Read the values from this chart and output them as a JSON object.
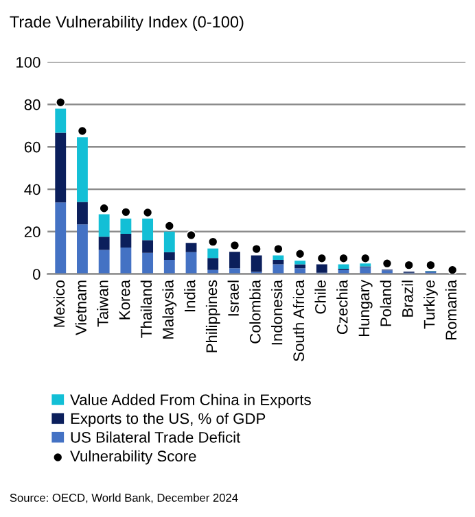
{
  "chart_data": {
    "type": "bar",
    "stacked": true,
    "title": "Trade Vulnerability Index (0-100)",
    "categories": [
      "Mexico",
      "Vietnam",
      "Taiwan",
      "Korea",
      "Thailand",
      "Malaysia",
      "India",
      "Philippines",
      "Israel",
      "Colombia",
      "Indonesia",
      "South Africa",
      "Chile",
      "Czechia",
      "Hungary",
      "Poland",
      "Brazil",
      "Turkiye",
      "Romania"
    ],
    "series": [
      {
        "name": "US Bilateral Trade Deficit",
        "color": "#4472c4",
        "values": [
          33.8,
          23.4,
          11.4,
          12.5,
          10,
          6.7,
          10.3,
          1.9,
          2.7,
          1,
          4.6,
          2.7,
          0.6,
          1.9,
          3.2,
          1.7,
          0.6,
          1,
          0
        ]
      },
      {
        "name": "Exports to the US, % of GDP",
        "color": "#0b1f5c",
        "values": [
          32.9,
          10.6,
          6.2,
          6.5,
          6,
          3.6,
          4.4,
          5.7,
          7.8,
          7.8,
          2.1,
          1.9,
          4,
          0.6,
          0.4,
          0.4,
          0.5,
          0.3,
          0
        ]
      },
      {
        "name": "Value Added From China in Exports",
        "color": "#13bfd6",
        "values": [
          11.3,
          30.5,
          10.6,
          7.2,
          10.2,
          9.7,
          0,
          4.4,
          0,
          0,
          2.1,
          1.7,
          0,
          2.1,
          1.4,
          0,
          0,
          0.2,
          0
        ]
      },
      {
        "name": "Vulnerability Score",
        "type": "scatter",
        "color": "#000000",
        "marker": "circle",
        "values": [
          81,
          67.5,
          31,
          29.2,
          29,
          22.7,
          18.3,
          15.2,
          13.5,
          11.8,
          11.8,
          9.5,
          7.4,
          7.4,
          7.4,
          5,
          4.2,
          4.2,
          1.9
        ]
      }
    ],
    "ylim": [
      0,
      100
    ],
    "yticks": [
      0,
      20,
      40,
      60,
      80,
      100
    ],
    "grid": "y",
    "legend": "bottom",
    "annotations": [
      "Source: OECD, World Bank, December 2024"
    ]
  }
}
